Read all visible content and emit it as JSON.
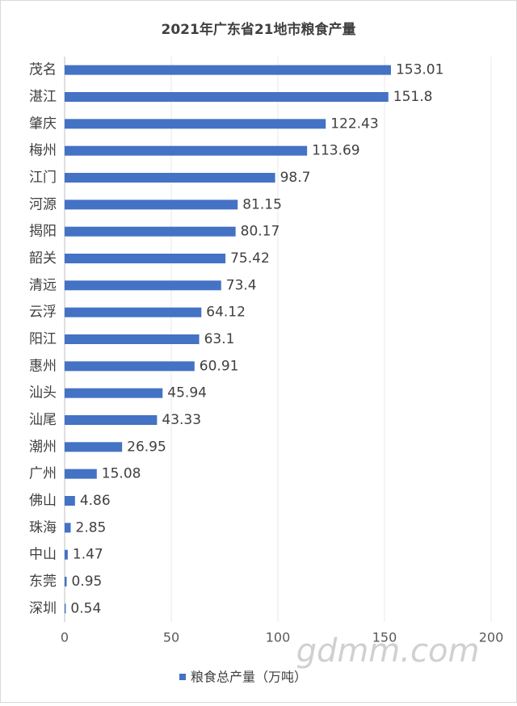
{
  "chart_data": {
    "type": "bar",
    "orientation": "horizontal",
    "title": "2021年广东省21地市粮食产量",
    "categories": [
      "茂名",
      "湛江",
      "肇庆",
      "梅州",
      "江门",
      "河源",
      "揭阳",
      "韶关",
      "清远",
      "云浮",
      "阳江",
      "惠州",
      "汕头",
      "汕尾",
      "潮州",
      "广州",
      "佛山",
      "珠海",
      "中山",
      "东莞",
      "深圳"
    ],
    "series": [
      {
        "name": "粮食总产量（万吨）",
        "color": "#4472c4",
        "values": [
          153.01,
          151.8,
          122.43,
          113.69,
          98.7,
          81.15,
          80.17,
          75.42,
          73.4,
          64.12,
          63.1,
          60.91,
          45.94,
          43.33,
          26.95,
          15.08,
          4.86,
          2.85,
          1.47,
          0.95,
          0.54
        ]
      }
    ],
    "xlim": [
      0,
      200
    ],
    "xticks": [
      0,
      50,
      100,
      150,
      200
    ],
    "grid": true,
    "legend": "bottom",
    "watermark": "gdmm.com"
  }
}
